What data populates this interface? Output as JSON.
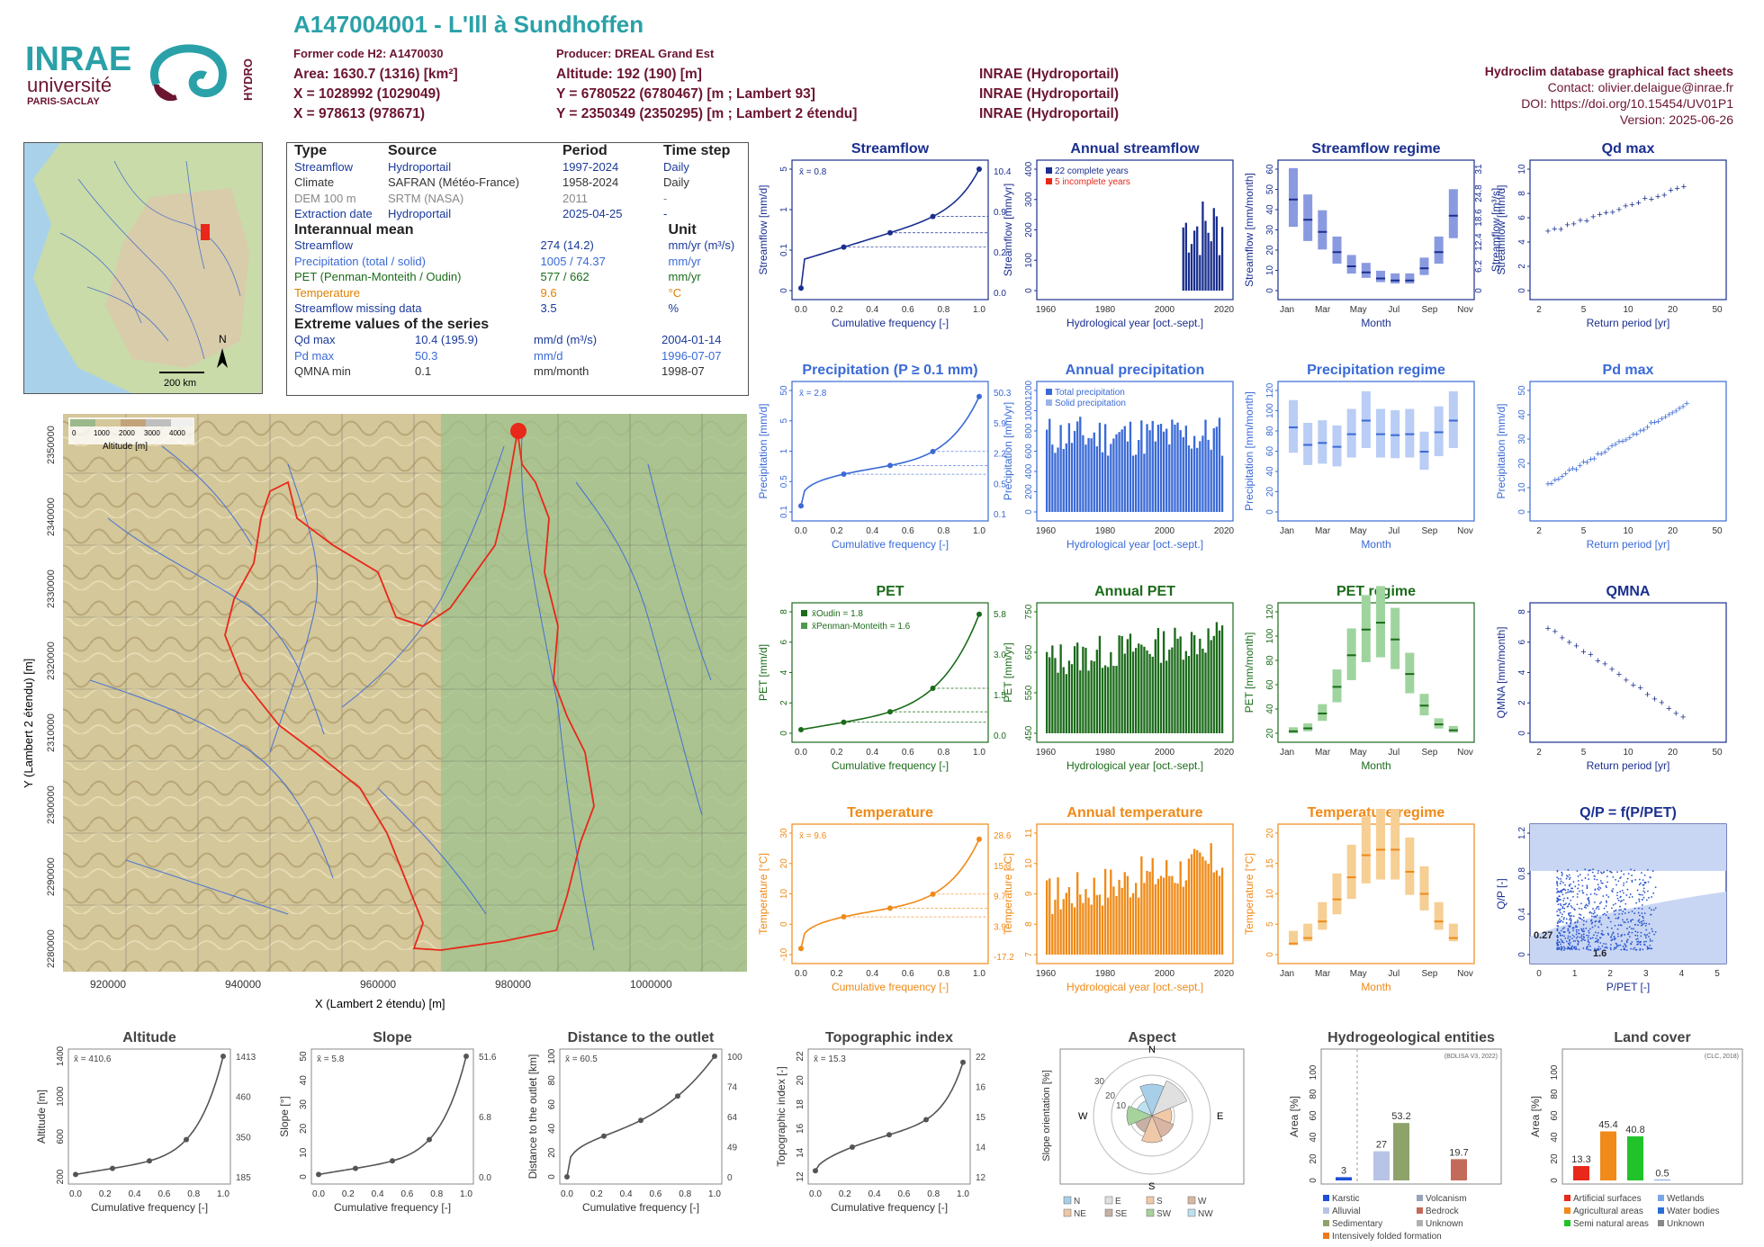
{
  "header": {
    "title": "A147004001 - L'Ill à Sundhoffen",
    "former_code": "Former code H2: A1470030",
    "producer": "Producer: DREAL Grand Est",
    "area": "Area: 1630.7 (1316) [km²]",
    "altitude": "Altitude: 192 (190) [m]",
    "x93": "X = 1028992 (1029049)",
    "y93": "Y = 6780522 (6780467) [m ; Lambert 93]",
    "x2e": "X = 978613 (978671)",
    "y2e": "Y = 2350349 (2350295) [m ; Lambert 2 étendu]",
    "src1": "INRAE (Hydroportail)",
    "src2": "INRAE (Hydroportail)",
    "src3": "INRAE (Hydroportail)",
    "db": "Hydroclim database graphical fact sheets",
    "contact": "Contact: olivier.delaigue@inrae.fr",
    "doi": "DOI: https://doi.org/10.15454/UV01P1",
    "version": "Version: 2025-06-26"
  },
  "logos": {
    "inrae": "INRAE",
    "univ": "université",
    "univ2": "PARIS-SACLAY",
    "hydro": "HYDRO"
  },
  "colors": {
    "teal": "#2aa1a8",
    "maroon": "#6b1530",
    "blue": "#1a2f8f",
    "lblue": "#3a6ad6",
    "green": "#1b6b1b",
    "orange": "#ef8a17",
    "red": "#e8281a"
  },
  "info": {
    "head": [
      "Type",
      "Source",
      "Period",
      "Time step"
    ],
    "rows": [
      [
        "Streamflow",
        "Hydroportail",
        "1997-2024",
        "Daily"
      ],
      [
        "Climate",
        "SAFRAN (Météo-France)",
        "1958-2024",
        "Daily"
      ],
      [
        "DEM 100 m",
        "SRTM (NASA)",
        "2011",
        "-"
      ],
      [
        "Extraction date",
        "Hydroportail",
        "2025-04-25",
        "-"
      ]
    ],
    "mean_head": "Interannual mean",
    "unit_head": "Unit",
    "mean_rows": [
      [
        "Streamflow",
        "274 (14.2)",
        "mm/yr (m³/s)"
      ],
      [
        "Precipitation (total / solid)",
        "1005 / 74.37",
        "mm/yr"
      ],
      [
        "PET (Penman-Monteith / Oudin)",
        "577 / 662",
        "mm/yr"
      ],
      [
        "Temperature",
        "9.6",
        "°C"
      ],
      [
        "Streamflow missing data",
        "3.5",
        "%"
      ]
    ],
    "ext_head": "Extreme values of the series",
    "ext_rows": [
      [
        "Qd max",
        "10.4 (195.9)",
        "mm/d (m³/s)",
        "2004-01-14"
      ],
      [
        "Pd max",
        "50.3",
        "mm/d",
        "1996-07-07"
      ],
      [
        "QMNA min",
        "0.1",
        "mm/month",
        "1998-07"
      ]
    ]
  },
  "map": {
    "scale": "200 km",
    "north": "N",
    "xlabel": "X (Lambert 2 étendu) [m]",
    "ylabel": "Y (Lambert 2 étendu) [m]",
    "xticks": [
      "920000",
      "940000",
      "960000",
      "980000",
      "1000000"
    ],
    "yticks": [
      "2280000",
      "2290000",
      "2300000",
      "2310000",
      "2320000",
      "2330000",
      "2340000",
      "2350000"
    ],
    "legend_ticks": [
      "0",
      "1000",
      "2000",
      "3000",
      "4000"
    ],
    "legend_label": "Altitude [m]"
  },
  "chart_data": [
    {
      "id": "streamflow_cdf",
      "type": "line",
      "title": "Streamflow",
      "xlabel": "Cumulative frequency [-]",
      "ylabel": "Streamflow [mm/d]",
      "mean_label": "x̄ = 0.8",
      "right_ticks": [
        "10.4",
        "0.9",
        "0.2",
        "0.0"
      ],
      "y_ticks": [
        "0",
        "0.1",
        "1",
        "5"
      ],
      "x_ticks": [
        "0.0",
        "0.2",
        "0.4",
        "0.6",
        "0.8",
        "1.0"
      ],
      "points": [
        [
          0,
          0.0
        ],
        [
          0.25,
          0.2
        ],
        [
          0.5,
          0.35
        ],
        [
          0.75,
          0.9
        ],
        [
          1.0,
          10.4
        ]
      ]
    },
    {
      "id": "annual_streamflow",
      "type": "bar",
      "title": "Annual streamflow",
      "xlabel": "Hydrological year [oct.-sept.]",
      "ylabel": "Streamflow [mm/yr]",
      "legend": [
        "22 complete years",
        "5 incomplete years"
      ],
      "x_ticks": [
        "1960",
        "1980",
        "2000",
        "2020"
      ],
      "y_ticks": [
        "0",
        "100",
        "200",
        "300",
        "400"
      ]
    },
    {
      "id": "streamflow_regime",
      "type": "bar",
      "title": "Streamflow regime",
      "xlabel": "Month",
      "ylabel": "Streamflow [mm/month]",
      "ylabel2": "Streamflow [m³/s]",
      "x_ticks": [
        "Jan",
        "Mar",
        "May",
        "Jul",
        "Sep",
        "Nov"
      ],
      "y_ticks": [
        "0",
        "10",
        "20",
        "30",
        "40",
        "50",
        "60"
      ],
      "y2_ticks": [
        "0",
        "6.2",
        "12.4",
        "18.6",
        "24.8",
        "31"
      ],
      "medians": [
        45,
        35,
        29,
        19,
        12,
        9,
        6,
        5,
        5,
        11,
        19,
        37
      ]
    },
    {
      "id": "qd_max",
      "type": "scatter",
      "title": "Qd max",
      "xlabel": "Return period [yr]",
      "ylabel": "Streamflow [mm/d]",
      "x_ticks": [
        "2",
        "5",
        "10",
        "20",
        "50"
      ],
      "y_ticks": [
        "0",
        "2",
        "4",
        "6",
        "8",
        "10"
      ]
    },
    {
      "id": "precip_cdf",
      "type": "line",
      "title": "Precipitation (P ≥ 0.1 mm)",
      "xlabel": "Cumulative frequency [-]",
      "ylabel": "Precipitation [mm/d]",
      "mean_label": "x̄ = 2.8",
      "right_ticks": [
        "50.3",
        "5.9",
        "2.2",
        "0.5",
        "0.1"
      ],
      "y_ticks": [
        "0.1",
        "0.5",
        "1",
        "5",
        "50"
      ],
      "x_ticks": [
        "0.0",
        "0.2",
        "0.4",
        "0.6",
        "0.8",
        "1.0"
      ]
    },
    {
      "id": "annual_precip",
      "type": "bar",
      "title": "Annual precipitation",
      "xlabel": "Hydrological year [oct.-sept.]",
      "ylabel": "Precipitation [mm/yr]",
      "legend": [
        "Total precipitation",
        "Solid precipitation"
      ],
      "x_ticks": [
        "1960",
        "1980",
        "2000",
        "2020"
      ],
      "y_ticks": [
        "0",
        "200",
        "400",
        "600",
        "800",
        "1000",
        "1200"
      ]
    },
    {
      "id": "precip_regime",
      "type": "bar",
      "title": "Precipitation regime",
      "xlabel": "Month",
      "ylabel": "Precipitation [mm/month]",
      "x_ticks": [
        "Jan",
        "Mar",
        "May",
        "Jul",
        "Sep",
        "Nov"
      ],
      "y_ticks": [
        "0",
        "20",
        "40",
        "60",
        "80",
        "100",
        "120"
      ],
      "medians": [
        87,
        69,
        71,
        67,
        80,
        94,
        80,
        79,
        80,
        62,
        82,
        94
      ]
    },
    {
      "id": "pd_max",
      "type": "scatter",
      "title": "Pd max",
      "xlabel": "Return period [yr]",
      "ylabel": "Precipitation [mm/d]",
      "x_ticks": [
        "2",
        "5",
        "10",
        "20",
        "50"
      ],
      "y_ticks": [
        "0",
        "10",
        "20",
        "30",
        "40",
        "50"
      ]
    },
    {
      "id": "pet_cdf",
      "type": "line",
      "title": "PET",
      "xlabel": "Cumulative frequency [-]",
      "ylabel": "PET [mm/d]",
      "legend": [
        "x̄Oudin = 1.8",
        "x̄Penman-Monteith = 1.6"
      ],
      "right_ticks": [
        "5.8",
        "3.0",
        "1.5",
        "0.0"
      ],
      "y_ticks": [
        "0",
        "2",
        "4",
        "6",
        "8"
      ],
      "x_ticks": [
        "0.0",
        "0.2",
        "0.4",
        "0.6",
        "0.8",
        "1.0"
      ]
    },
    {
      "id": "annual_pet",
      "type": "bar",
      "title": "Annual PET",
      "xlabel": "Hydrological year [oct.-sept.]",
      "ylabel": "PET [mm/yr]",
      "x_ticks": [
        "1960",
        "1980",
        "2000",
        "2020"
      ],
      "y_ticks": [
        "450",
        "550",
        "650",
        "750"
      ]
    },
    {
      "id": "pet_regime",
      "type": "bar",
      "title": "PET regime",
      "xlabel": "Month",
      "ylabel": "PET [mm/month]",
      "x_ticks": [
        "Jan",
        "Mar",
        "May",
        "Jul",
        "Sep",
        "Nov"
      ],
      "y_ticks": [
        "20",
        "40",
        "60",
        "80",
        "100",
        "120"
      ],
      "medians": [
        7,
        10,
        25,
        52,
        84,
        110,
        117,
        100,
        65,
        33,
        14,
        8
      ]
    },
    {
      "id": "qmna",
      "type": "scatter",
      "title": "QMNA",
      "xlabel": "Return period [yr]",
      "ylabel": "QMNA [mm/month]",
      "x_ticks": [
        "2",
        "5",
        "10",
        "20",
        "50"
      ],
      "y_ticks": [
        "0",
        "2",
        "4",
        "6",
        "8"
      ]
    },
    {
      "id": "temp_cdf",
      "type": "line",
      "title": "Temperature",
      "xlabel": "Cumulative frequency [-]",
      "ylabel": "Temperature [°C]",
      "mean_label": "x̄ = 9.6",
      "right_ticks": [
        "28.6",
        "15.3",
        "9.7",
        "3.9",
        "-17.2"
      ],
      "y_ticks": [
        "-10",
        "0",
        "10",
        "20",
        "30"
      ],
      "x_ticks": [
        "0.0",
        "0.2",
        "0.4",
        "0.6",
        "0.8",
        "1.0"
      ]
    },
    {
      "id": "annual_temp",
      "type": "bar",
      "title": "Annual temperature",
      "xlabel": "Hydrological year [oct.-sept.]",
      "ylabel": "Temperature [°C]",
      "x_ticks": [
        "1960",
        "1980",
        "2000",
        "2020"
      ],
      "y_ticks": [
        "7",
        "8",
        "9",
        "10",
        "11"
      ]
    },
    {
      "id": "temp_regime",
      "type": "bar",
      "title": "Temperature regime",
      "xlabel": "Month",
      "ylabel": "Temperature [°C]",
      "x_ticks": [
        "Jan",
        "Mar",
        "May",
        "Jul",
        "Sep",
        "Nov"
      ],
      "y_ticks": [
        "0",
        "5",
        "10",
        "15",
        "20"
      ],
      "medians": [
        1,
        2,
        5,
        9,
        13,
        17,
        18,
        18,
        14,
        10,
        5,
        2
      ]
    },
    {
      "id": "qp_ppet",
      "type": "scatter",
      "title": "Q/P = f(P/PET)",
      "xlabel": "P/PET [-]",
      "ylabel": "Q/P [-]",
      "labels": [
        "0.27",
        "1.6"
      ],
      "x_ticks": [
        "0",
        "1",
        "2",
        "3",
        "4",
        "5"
      ],
      "y_ticks": [
        "0",
        "0.4",
        "0.8",
        "1.2"
      ]
    },
    {
      "id": "altitude_cdf",
      "type": "line",
      "title": "Altitude",
      "xlabel": "Cumulative frequency [-]",
      "ylabel": "Altitude [m]",
      "mean_label": "x̄ = 410.6",
      "right_ticks": [
        "1413",
        "460",
        "350",
        "185"
      ],
      "y_ticks": [
        "200",
        "600",
        "1000",
        "1400"
      ],
      "x_ticks": [
        "0.0",
        "0.2",
        "0.4",
        "0.6",
        "0.8",
        "1.0"
      ]
    },
    {
      "id": "slope_cdf",
      "type": "line",
      "title": "Slope",
      "xlabel": "Cumulative frequency [-]",
      "ylabel": "Slope [°]",
      "mean_label": "x̄ = 5.8",
      "right_ticks": [
        "51.6",
        "6.8",
        "0.0"
      ],
      "y_ticks": [
        "0",
        "10",
        "20",
        "30",
        "40",
        "50"
      ],
      "x_ticks": [
        "0.0",
        "0.2",
        "0.4",
        "0.6",
        "0.8",
        "1.0"
      ]
    },
    {
      "id": "distance_cdf",
      "type": "line",
      "title": "Distance to the outlet",
      "xlabel": "Cumulative frequency [-]",
      "ylabel": "Distance to the outlet [km]",
      "mean_label": "x̄ = 60.5",
      "right_ticks": [
        "100",
        "74",
        "64",
        "49",
        "0"
      ],
      "y_ticks": [
        "0",
        "20",
        "40",
        "60",
        "80",
        "100"
      ],
      "x_ticks": [
        "0.0",
        "0.2",
        "0.4",
        "0.6",
        "0.8",
        "1.0"
      ]
    },
    {
      "id": "topo_cdf",
      "type": "line",
      "title": "Topographic index",
      "xlabel": "Cumulative frequency [-]",
      "ylabel": "Topographic index [-]",
      "mean_label": "x̄ = 15.3",
      "right_ticks": [
        "22",
        "16",
        "15",
        "14",
        "12"
      ],
      "y_ticks": [
        "12",
        "14",
        "16",
        "18",
        "20",
        "22"
      ],
      "x_ticks": [
        "0.0",
        "0.2",
        "0.4",
        "0.6",
        "0.8",
        "1.0"
      ]
    },
    {
      "id": "aspect",
      "type": "pie",
      "title": "Aspect",
      "ylabel": "Slope orientation [%]",
      "dirs": [
        "N",
        "E",
        "S",
        "W"
      ],
      "rings": [
        "10",
        "20",
        "30"
      ],
      "legend": [
        "N",
        "E",
        "S",
        "W",
        "NE",
        "SE",
        "SW",
        "NW"
      ]
    },
    {
      "id": "hydrogeo",
      "type": "bar",
      "title": "Hydrogeological entities",
      "ylabel": "Area [%]",
      "source": "(BDLISA V3, 2022)",
      "values": [
        3,
        27,
        53.2,
        19.7
      ],
      "labels": [
        "3",
        "27",
        "53.2",
        "19.7"
      ],
      "legend": [
        "Karstic",
        "Volcanism",
        "Alluvial",
        "Bedrock",
        "Sedimentary",
        "Unknown",
        "Intensively folded formation"
      ],
      "y_ticks": [
        "0",
        "20",
        "40",
        "60",
        "80",
        "100"
      ]
    },
    {
      "id": "landcover",
      "type": "bar",
      "title": "Land cover",
      "ylabel": "Area [%]",
      "source": "(CLC, 2018)",
      "values": [
        13.3,
        45.4,
        40.8,
        0.5
      ],
      "labels": [
        "13.3",
        "45.4",
        "40.8",
        "0.5"
      ],
      "legend": [
        "Artificial surfaces",
        "Wetlands",
        "Agricultural areas",
        "Water bodies",
        "Semi natural areas",
        "Unknown"
      ],
      "y_ticks": [
        "0",
        "20",
        "40",
        "60",
        "80",
        "100"
      ]
    }
  ]
}
